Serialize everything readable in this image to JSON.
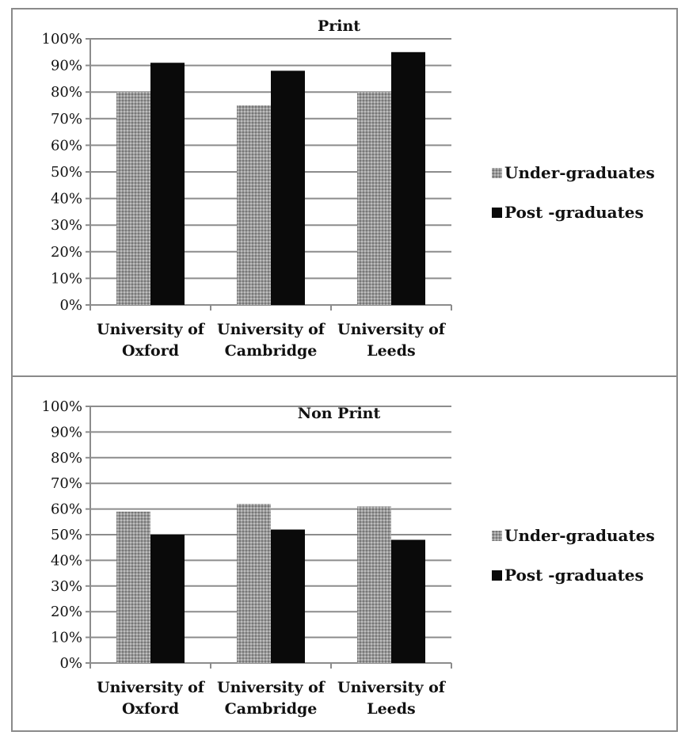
{
  "chart_data": [
    {
      "type": "bar",
      "title": "Print",
      "categories": [
        [
          "University of",
          "Oxford"
        ],
        [
          "University of",
          "Cambridge"
        ],
        [
          "University of",
          "Leeds"
        ]
      ],
      "series": [
        {
          "name": "Under-graduates",
          "values": [
            80,
            75,
            80
          ]
        },
        {
          "name": "Post -graduates",
          "values": [
            91,
            88,
            95
          ]
        }
      ],
      "yticks": [
        "0%",
        "10%",
        "20%",
        "30%",
        "40%",
        "50%",
        "60%",
        "70%",
        "80%",
        "90%",
        "100%"
      ],
      "ylim": [
        0,
        100
      ],
      "legend": "right",
      "grid": true
    },
    {
      "type": "bar",
      "title": "Non Print",
      "categories": [
        [
          "University of",
          "Oxford"
        ],
        [
          "University of",
          "Cambridge"
        ],
        [
          "University of",
          "Leeds"
        ]
      ],
      "series": [
        {
          "name": "Under-graduates",
          "values": [
            59,
            62,
            61
          ]
        },
        {
          "name": "Post -graduates",
          "values": [
            50,
            52,
            48
          ]
        }
      ],
      "yticks": [
        "0%",
        "10%",
        "20%",
        "30%",
        "40%",
        "50%",
        "60%",
        "70%",
        "80%",
        "90%",
        "100%"
      ],
      "ylim": [
        0,
        100
      ],
      "legend": "right",
      "grid": true
    }
  ],
  "colors": {
    "gridline": "#8c8c8c",
    "undergrad_base": "#9a9a9a",
    "postgrad": "#0a0a0a",
    "text": "#111111"
  }
}
